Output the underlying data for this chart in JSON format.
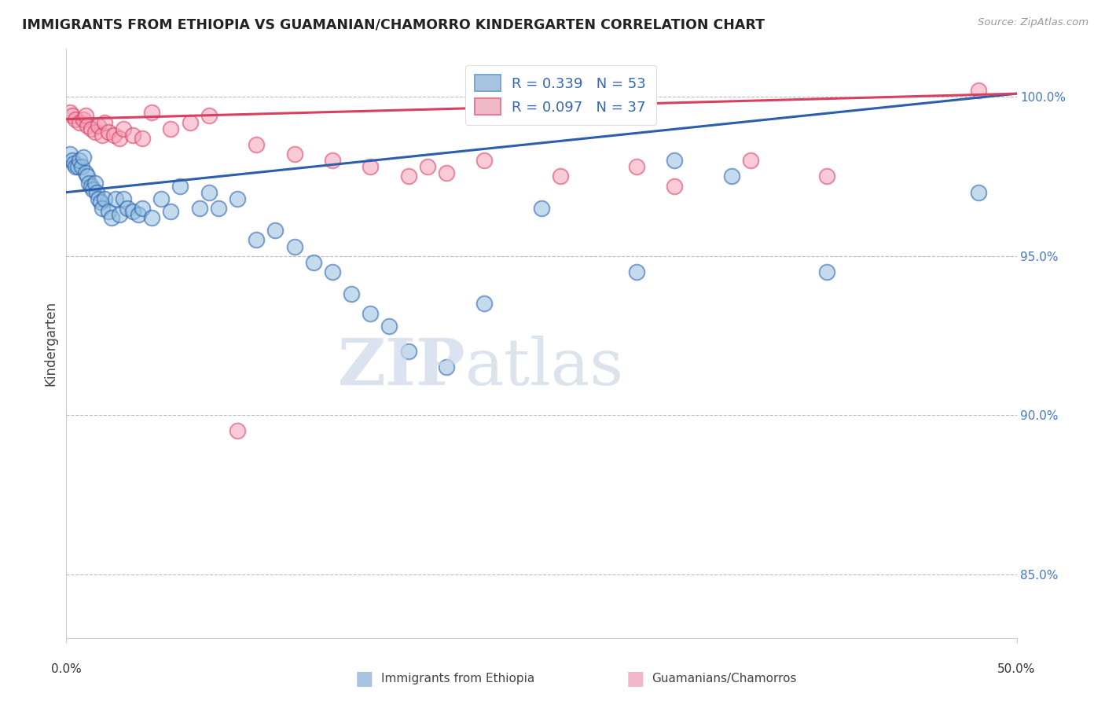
{
  "title": "IMMIGRANTS FROM ETHIOPIA VS GUAMANIAN/CHAMORRO KINDERGARTEN CORRELATION CHART",
  "source": "Source: ZipAtlas.com",
  "ylabel": "Kindergarten",
  "xlim": [
    0.0,
    50.0
  ],
  "ylim": [
    83.0,
    101.5
  ],
  "y_ticks": [
    85.0,
    90.0,
    95.0,
    100.0
  ],
  "y_tick_labels": [
    "85.0%",
    "90.0%",
    "95.0%",
    "100.0%"
  ],
  "legend_blue_R": "R = 0.339",
  "legend_blue_N": "N = 53",
  "legend_pink_R": "R = 0.097",
  "legend_pink_N": "N = 37",
  "legend_blue_color": "#a8c4e0",
  "legend_pink_color": "#f0b8c8",
  "blue_line_color": "#2b5fad",
  "pink_line_color": "#d94060",
  "blue_scatter_color": "#92bfdf",
  "pink_scatter_color": "#f5a0b8",
  "tick_label_color": "#4477cc",
  "blue_x": [
    0.2,
    0.3,
    0.4,
    0.5,
    0.6,
    0.7,
    0.8,
    0.9,
    1.0,
    1.1,
    1.2,
    1.3,
    1.4,
    1.5,
    1.6,
    1.7,
    1.8,
    1.9,
    2.0,
    2.2,
    2.4,
    2.6,
    2.8,
    3.0,
    3.2,
    3.5,
    3.8,
    4.0,
    4.5,
    5.0,
    5.5,
    6.0,
    7.0,
    7.5,
    8.0,
    9.0,
    10.0,
    11.0,
    12.0,
    13.0,
    14.0,
    15.0,
    16.0,
    17.0,
    18.0,
    20.0,
    22.0,
    25.0,
    30.0,
    32.0,
    35.0,
    40.0,
    48.0
  ],
  "blue_y": [
    98.2,
    98.0,
    97.9,
    97.8,
    97.8,
    98.0,
    97.8,
    98.1,
    97.6,
    97.5,
    97.3,
    97.2,
    97.1,
    97.3,
    97.0,
    96.8,
    96.7,
    96.5,
    96.8,
    96.4,
    96.2,
    96.8,
    96.3,
    96.8,
    96.5,
    96.4,
    96.3,
    96.5,
    96.2,
    96.8,
    96.4,
    97.2,
    96.5,
    97.0,
    96.5,
    96.8,
    95.5,
    95.8,
    95.3,
    94.8,
    94.5,
    93.8,
    93.2,
    92.8,
    92.0,
    91.5,
    93.5,
    96.5,
    94.5,
    98.0,
    97.5,
    94.5,
    97.0
  ],
  "pink_x": [
    0.2,
    0.3,
    0.5,
    0.7,
    0.9,
    1.0,
    1.1,
    1.3,
    1.5,
    1.7,
    1.9,
    2.0,
    2.2,
    2.5,
    2.8,
    3.0,
    3.5,
    4.0,
    4.5,
    5.5,
    6.5,
    7.5,
    9.0,
    10.0,
    12.0,
    14.0,
    16.0,
    18.0,
    19.0,
    20.0,
    22.0,
    26.0,
    30.0,
    32.0,
    36.0,
    40.0,
    48.0
  ],
  "pink_y": [
    99.5,
    99.4,
    99.3,
    99.2,
    99.3,
    99.4,
    99.1,
    99.0,
    98.9,
    99.1,
    98.8,
    99.2,
    98.9,
    98.8,
    98.7,
    99.0,
    98.8,
    98.7,
    99.5,
    99.0,
    99.2,
    99.4,
    89.5,
    98.5,
    98.2,
    98.0,
    97.8,
    97.5,
    97.8,
    97.6,
    98.0,
    97.5,
    97.8,
    97.2,
    98.0,
    97.5,
    100.2
  ]
}
